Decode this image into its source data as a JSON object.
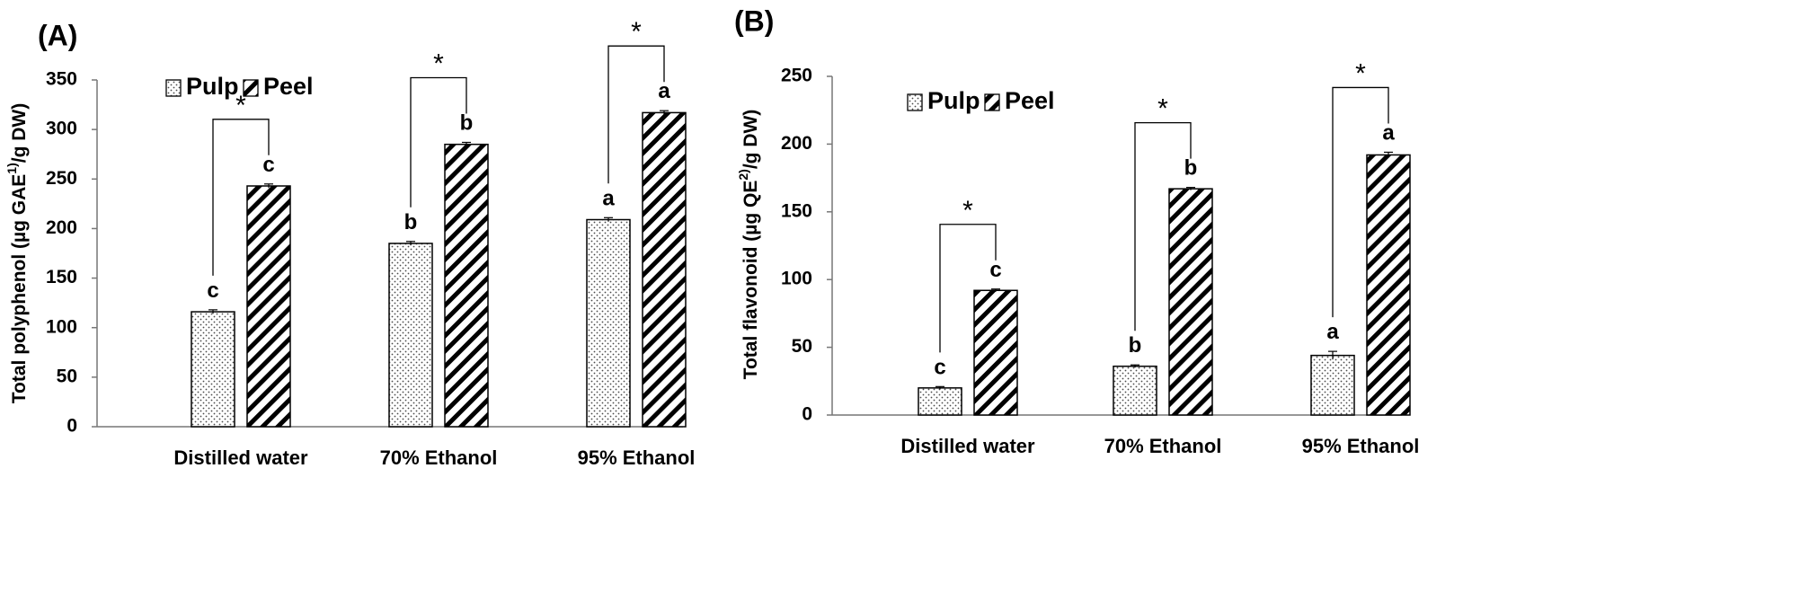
{
  "chart_data": [
    {
      "type": "bar",
      "panel_label": "(A)",
      "ylabel_main": "Total polyphenol (µg GAE",
      "ylabel_sup": "1)",
      "ylabel_tail": "/g DW)",
      "ylim": [
        0,
        350
      ],
      "yticks": [
        "0",
        "50",
        "100",
        "150",
        "200",
        "250",
        "300",
        "350"
      ],
      "categories": [
        "Distilled water",
        "70%  Ethanol",
        "95%  Ethanol"
      ],
      "legend_position": "top-left",
      "series": [
        {
          "name": "Pulp",
          "pattern": "dots",
          "values": [
            116,
            185,
            209
          ],
          "errors": [
            2,
            2,
            2
          ],
          "letters": [
            "c",
            "b",
            "a"
          ]
        },
        {
          "name": "Peel",
          "pattern": "hatch",
          "values": [
            243,
            285,
            317
          ],
          "errors": [
            2,
            2,
            2
          ],
          "letters": [
            "c",
            "b",
            "a"
          ]
        }
      ],
      "significance": [
        "*",
        "*",
        "*"
      ]
    },
    {
      "type": "bar",
      "panel_label": "(B)",
      "ylabel_main": "Total flavonoid (µg QE",
      "ylabel_sup": "2)",
      "ylabel_tail": "/g DW)",
      "ylim": [
        0,
        250
      ],
      "yticks": [
        "0",
        "50",
        "100",
        "150",
        "200",
        "250"
      ],
      "categories": [
        "Distilled water",
        "70%  Ethanol",
        "95%  Ethanol"
      ],
      "legend_position": "top-left",
      "series": [
        {
          "name": "Pulp",
          "pattern": "dots",
          "values": [
            20,
            36,
            44
          ],
          "errors": [
            1,
            1,
            3
          ],
          "letters": [
            "c",
            "b",
            "a"
          ]
        },
        {
          "name": "Peel",
          "pattern": "hatch",
          "values": [
            92,
            167,
            192
          ],
          "errors": [
            1,
            1,
            2
          ],
          "letters": [
            "c",
            "b",
            "a"
          ]
        }
      ],
      "significance": [
        "*",
        "*",
        "*"
      ]
    }
  ]
}
